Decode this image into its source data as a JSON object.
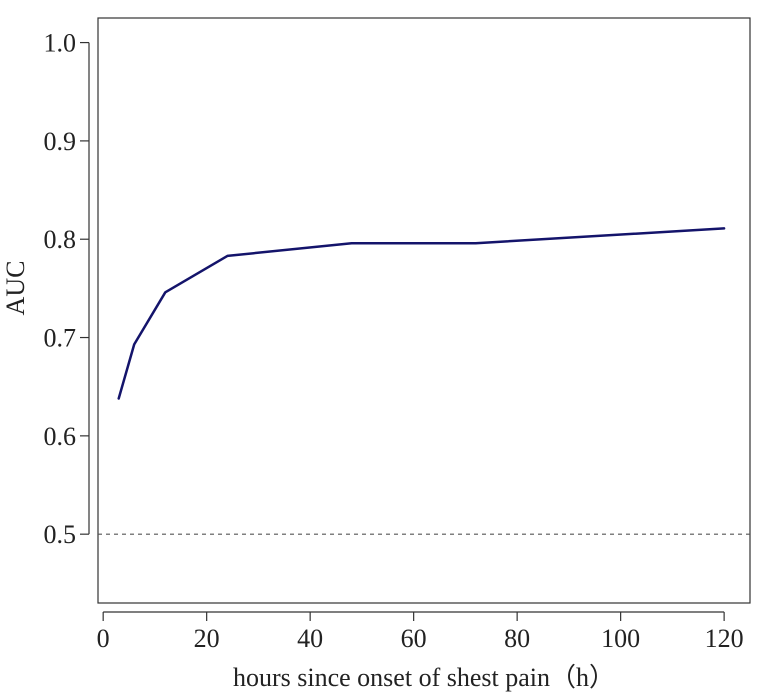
{
  "chart_data": {
    "type": "line",
    "title": "",
    "xlabel": "hours since onset of shest pain（h）",
    "ylabel": "AUC",
    "xlim": [
      -1,
      125
    ],
    "ylim": [
      0.43,
      1.025
    ],
    "x_ticks": [
      0,
      20,
      40,
      60,
      80,
      100,
      120
    ],
    "x_tick_labels": [
      "0",
      "20",
      "40",
      "60",
      "80",
      "100",
      "120"
    ],
    "y_ticks": [
      0.5,
      0.6,
      0.7,
      0.8,
      0.9,
      1.0
    ],
    "y_tick_labels": [
      "0.5",
      "0.6",
      "0.7",
      "0.8",
      "0.9",
      "1.0"
    ],
    "grid": false,
    "legend": "none",
    "series": [
      {
        "color": "#14146b",
        "x": [
          3,
          6,
          12,
          24,
          48,
          72,
          120
        ],
        "y": [
          0.638,
          0.693,
          0.746,
          0.783,
          0.796,
          0.796,
          0.811
        ]
      }
    ],
    "reference_lines": [
      {
        "orientation": "horizontal",
        "value": 0.5,
        "style": "dashed",
        "color": "#555555"
      }
    ]
  }
}
